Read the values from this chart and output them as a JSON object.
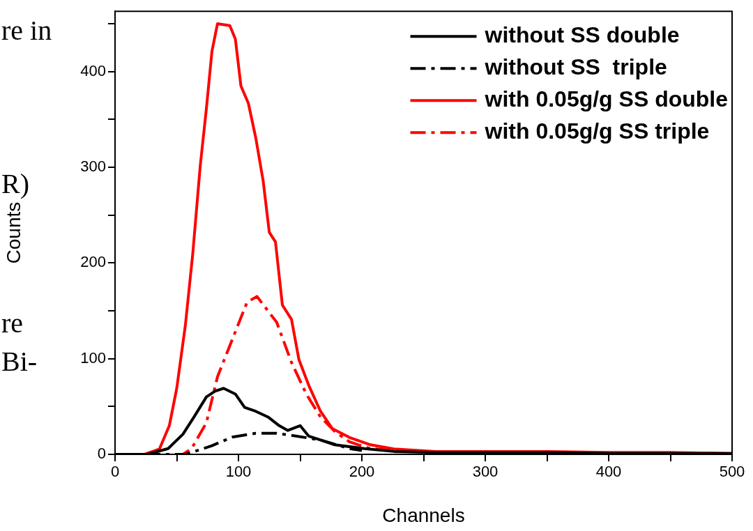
{
  "chart_data": {
    "type": "line",
    "xlabel": "Channels",
    "ylabel": "Counts",
    "xlim": [
      0,
      500
    ],
    "ylim": [
      0,
      463
    ],
    "xticks": [
      0,
      {
        "value": 50,
        "label": null
      },
      100,
      {
        "value": 150,
        "label": null
      },
      200,
      {
        "value": 250,
        "label": null
      },
      300,
      {
        "value": 350,
        "label": null
      },
      400,
      {
        "value": 450,
        "label": null
      },
      500
    ],
    "yticks": [
      0,
      {
        "value": 50,
        "label": null
      },
      100,
      {
        "value": 150,
        "label": null
      },
      200,
      {
        "value": 250,
        "label": null
      },
      300,
      {
        "value": 350,
        "label": null
      },
      400,
      {
        "value": 450,
        "label": null
      }
    ],
    "legend": "top right",
    "marker": "none",
    "grid": false,
    "annotations": [
      "re in",
      "R)",
      "re",
      "Bi-"
    ],
    "series": [
      {
        "name": "without SS double",
        "color": "#000000",
        "line_style": "solid",
        "x": [
          0,
          26,
          43,
          55,
          64,
          74,
          81,
          88,
          97.5,
          105,
          114,
          124,
          133,
          140,
          150,
          157,
          166.5,
          178,
          202,
          226,
          260,
          300,
          350,
          400,
          450,
          500
        ],
        "values": [
          0,
          0,
          6,
          21,
          39,
          60,
          66,
          69,
          63,
          49,
          45,
          39,
          30,
          25,
          30,
          19,
          15,
          10,
          6,
          3,
          2,
          2,
          2,
          1,
          1,
          1
        ]
      },
      {
        "name": "without SS  triple",
        "color": "#000000",
        "line_style": "dashed",
        "x": [
          0,
          57,
          78.5,
          95,
          114,
          131,
          147.5,
          166.5,
          190,
          200
        ],
        "values": [
          0,
          0,
          9,
          18,
          22,
          22,
          19,
          15,
          6,
          4
        ]
      },
      {
        "name": "with 0.05g/g SS double",
        "color": "#ff0000",
        "line_style": "solid",
        "x": [
          0,
          24,
          36,
          44,
          50,
          57,
          63,
          69,
          74,
          78.5,
          83,
          93,
          97.5,
          102,
          108,
          114,
          120,
          125,
          130,
          135.6,
          143,
          149,
          157,
          166.5,
          176,
          190,
          207,
          226,
          260,
          300,
          350,
          400,
          450,
          500
        ],
        "values": [
          0,
          0,
          5.6,
          30,
          69,
          135,
          210,
          301,
          361,
          421,
          450,
          448,
          434,
          385,
          367,
          331,
          286,
          232,
          222,
          156,
          141,
          99,
          72,
          45,
          27,
          17.6,
          10,
          5.6,
          3,
          3,
          3,
          2,
          2,
          1
        ]
      },
      {
        "name": "with 0.05g/g SS triple",
        "color": "#ff0000",
        "line_style": "dashed",
        "x": [
          0,
          55,
          62,
          74,
          83,
          95,
          107,
          115,
          131,
          143,
          155,
          166.5,
          178,
          190,
          207,
          240
        ],
        "values": [
          0,
          0,
          6,
          33,
          81,
          120,
          159,
          165,
          138,
          96,
          63,
          39,
          24,
          13,
          6,
          3
        ]
      }
    ]
  }
}
